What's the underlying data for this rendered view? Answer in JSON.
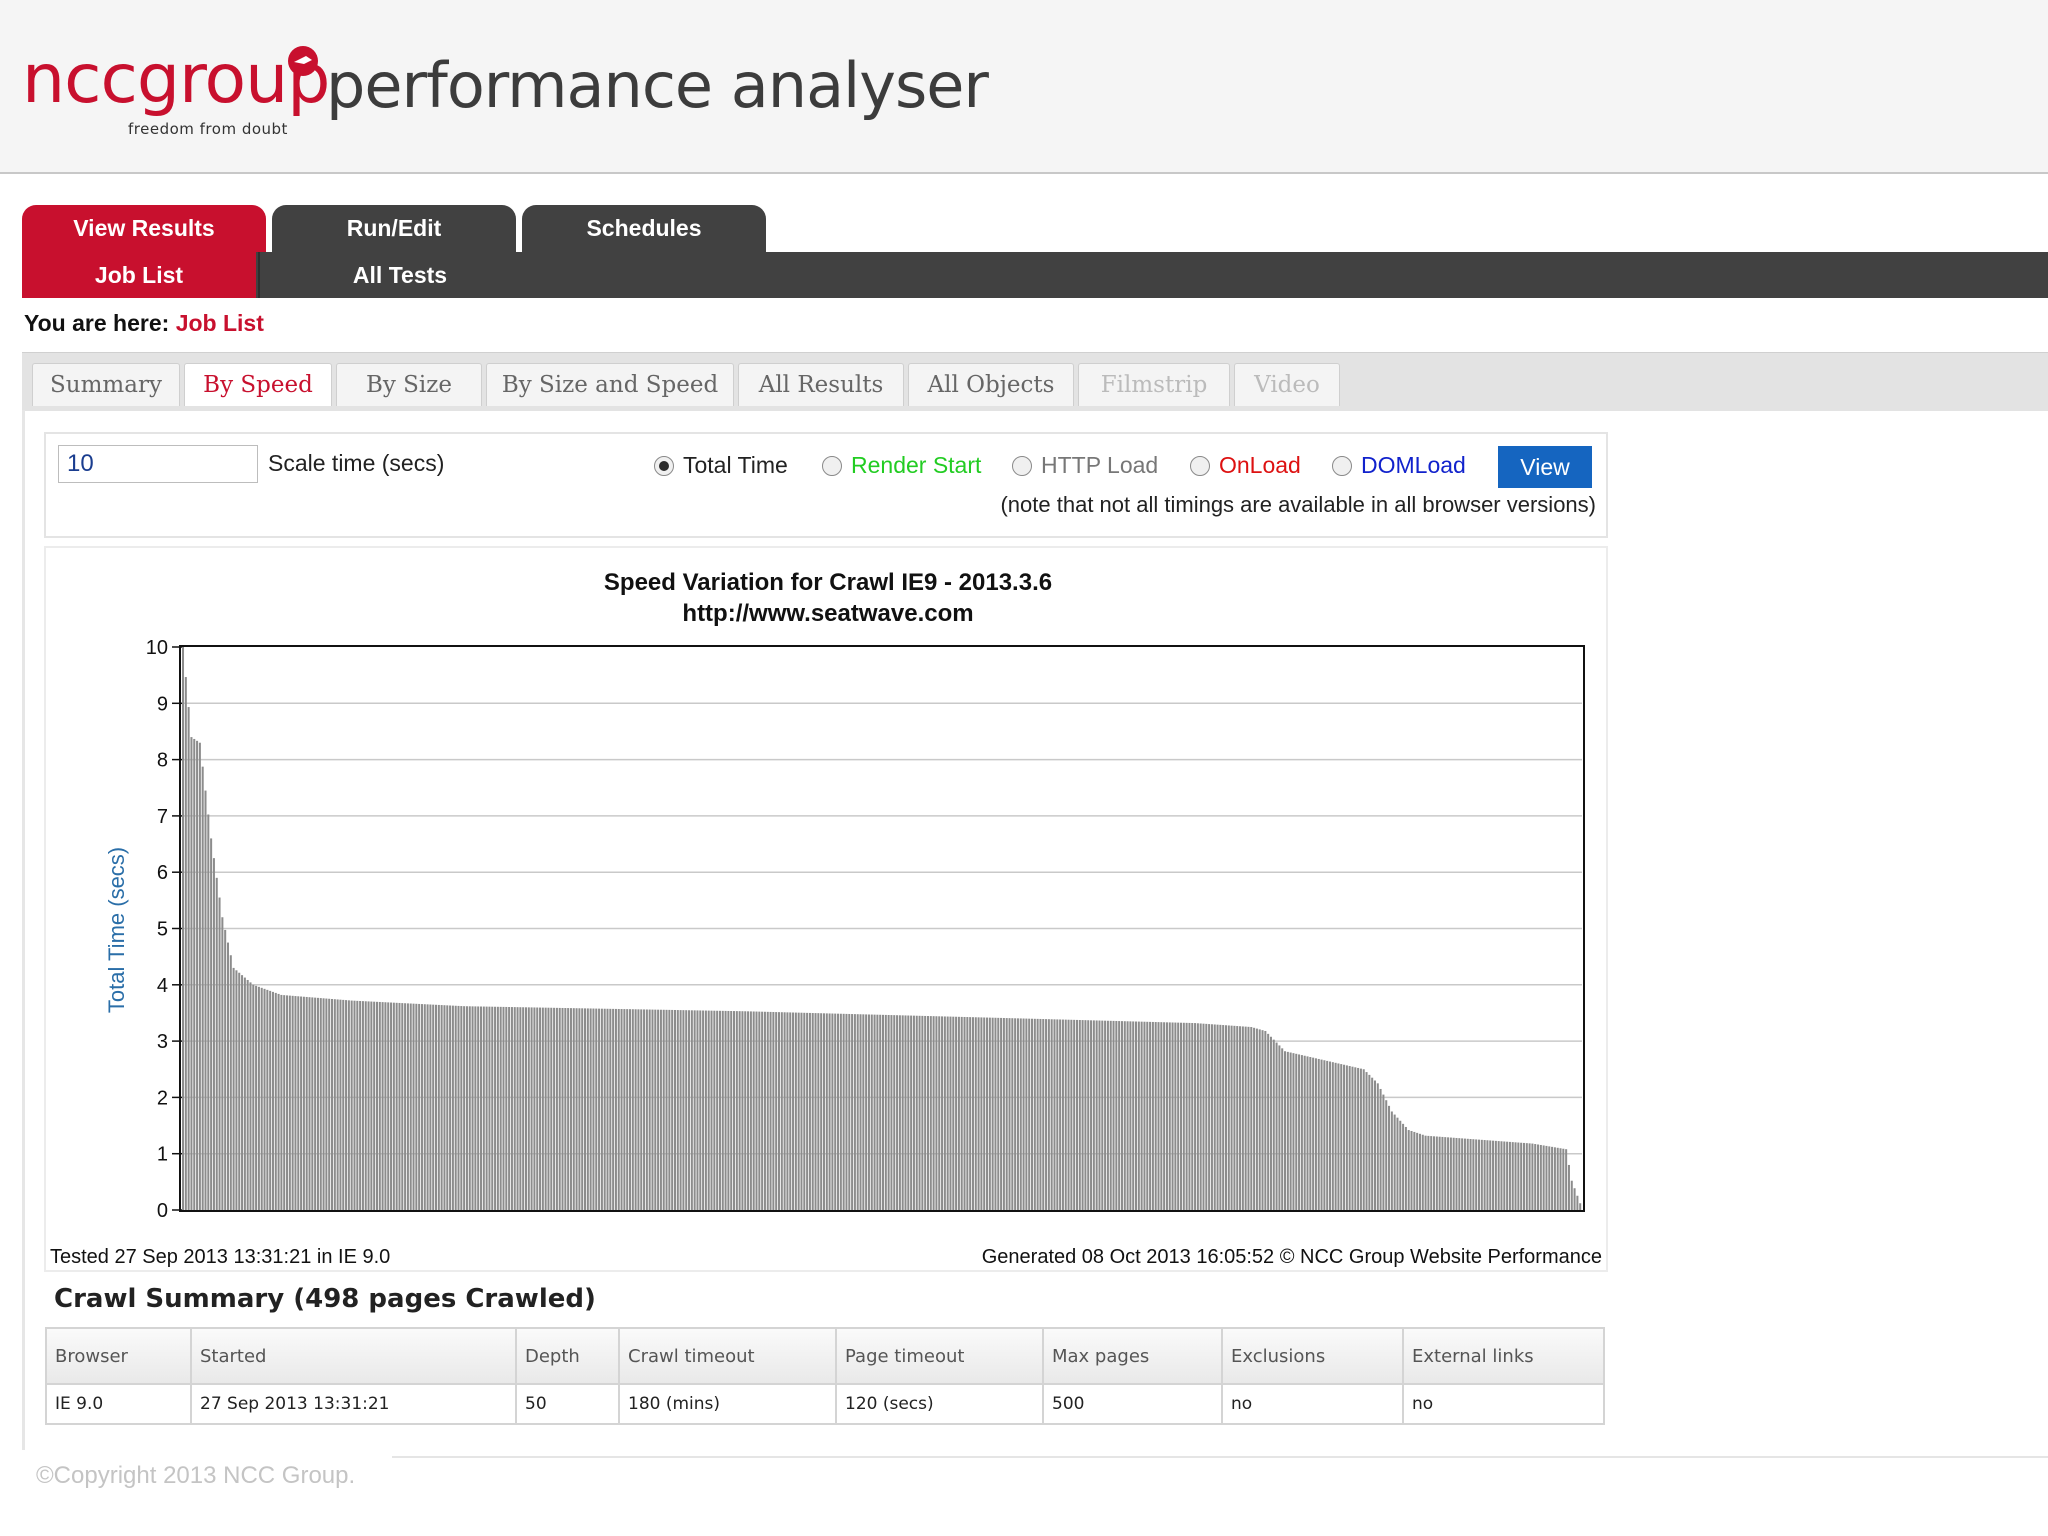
{
  "brand": {
    "logo_text": "nccgroup",
    "tagline": "freedom from doubt",
    "app_title": "performance analyser",
    "accent": "#c8102e",
    "dark": "#414141"
  },
  "main_tabs": [
    {
      "label": "View Results",
      "active": true
    },
    {
      "label": "Run/Edit",
      "active": false
    },
    {
      "label": "Schedules",
      "active": false
    }
  ],
  "sub_nav": [
    {
      "label": "Job List",
      "active": true
    },
    {
      "label": "All Tests",
      "active": false
    }
  ],
  "breadcrumb": {
    "prefix": "You are here:",
    "current": "Job List"
  },
  "result_tabs": [
    {
      "label": "Summary",
      "state": "normal"
    },
    {
      "label": "By Speed",
      "state": "active"
    },
    {
      "label": "By Size",
      "state": "normal"
    },
    {
      "label": "By Size and Speed",
      "state": "normal"
    },
    {
      "label": "All Results",
      "state": "normal"
    },
    {
      "label": "All Objects",
      "state": "normal"
    },
    {
      "label": "Filmstrip",
      "state": "disabled"
    },
    {
      "label": "Video",
      "state": "disabled"
    }
  ],
  "controls": {
    "scale_value": "10",
    "scale_label": "Scale time (secs)",
    "radios": [
      {
        "label": "Total Time",
        "checked": true,
        "color": "#222222"
      },
      {
        "label": "Render Start",
        "checked": false,
        "color": "#22cc22"
      },
      {
        "label": "HTTP Load",
        "checked": false,
        "color": "#777777"
      },
      {
        "label": "OnLoad",
        "checked": false,
        "color": "#dd1111"
      },
      {
        "label": "DOMLoad",
        "checked": false,
        "color": "#1122cc"
      }
    ],
    "view_label": "View",
    "note": "(note that not all timings are available in all browser versions)"
  },
  "chart_data": {
    "type": "bar",
    "title": "Speed Variation for Crawl IE9 - 2013.3.6",
    "subtitle": "http://www.seatwave.com",
    "xlabel": "",
    "ylabel": "Total Time (secs)",
    "ylim": [
      0,
      10
    ],
    "yticks": [
      0,
      1,
      2,
      3,
      4,
      5,
      6,
      7,
      8,
      9,
      10
    ],
    "grid": true,
    "bar_count": 498,
    "sorted": "descending",
    "profile_anchors": [
      {
        "rank": 0,
        "value": 10.0
      },
      {
        "rank": 3,
        "value": 8.4
      },
      {
        "rank": 6,
        "value": 8.3
      },
      {
        "rank": 10,
        "value": 6.6
      },
      {
        "rank": 14,
        "value": 5.2
      },
      {
        "rank": 18,
        "value": 4.3
      },
      {
        "rank": 25,
        "value": 4.0
      },
      {
        "rank": 35,
        "value": 3.82
      },
      {
        "rank": 60,
        "value": 3.72
      },
      {
        "rank": 100,
        "value": 3.62
      },
      {
        "rank": 200,
        "value": 3.53
      },
      {
        "rank": 300,
        "value": 3.4
      },
      {
        "rank": 360,
        "value": 3.32
      },
      {
        "rank": 380,
        "value": 3.25
      },
      {
        "rank": 385,
        "value": 3.18
      },
      {
        "rank": 392,
        "value": 2.82
      },
      {
        "rank": 420,
        "value": 2.5
      },
      {
        "rank": 425,
        "value": 2.25
      },
      {
        "rank": 430,
        "value": 1.75
      },
      {
        "rank": 436,
        "value": 1.42
      },
      {
        "rank": 442,
        "value": 1.32
      },
      {
        "rank": 480,
        "value": 1.18
      },
      {
        "rank": 492,
        "value": 1.08
      },
      {
        "rank": 494,
        "value": 0.52
      },
      {
        "rank": 497,
        "value": 0.12
      }
    ],
    "bar_color": "#8c8c8c"
  },
  "chart_footer": {
    "tested": "Tested 27 Sep 2013 13:31:21 in IE 9.0",
    "generated": "Generated 08 Oct 2013 16:05:52 © NCC Group Website Performance"
  },
  "crawl_summary": {
    "title": "Crawl Summary (498 pages Crawled)",
    "headers": [
      "Browser",
      "Started",
      "Depth",
      "Crawl timeout",
      "Page timeout",
      "Max pages",
      "Exclusions",
      "External links"
    ],
    "row": [
      "IE 9.0",
      "27 Sep 2013 13:31:21",
      "50",
      "180 (mins)",
      "120 (secs)",
      "500",
      "no",
      "no"
    ]
  },
  "footer": {
    "copyright": "©Copyright 2013 NCC Group."
  }
}
